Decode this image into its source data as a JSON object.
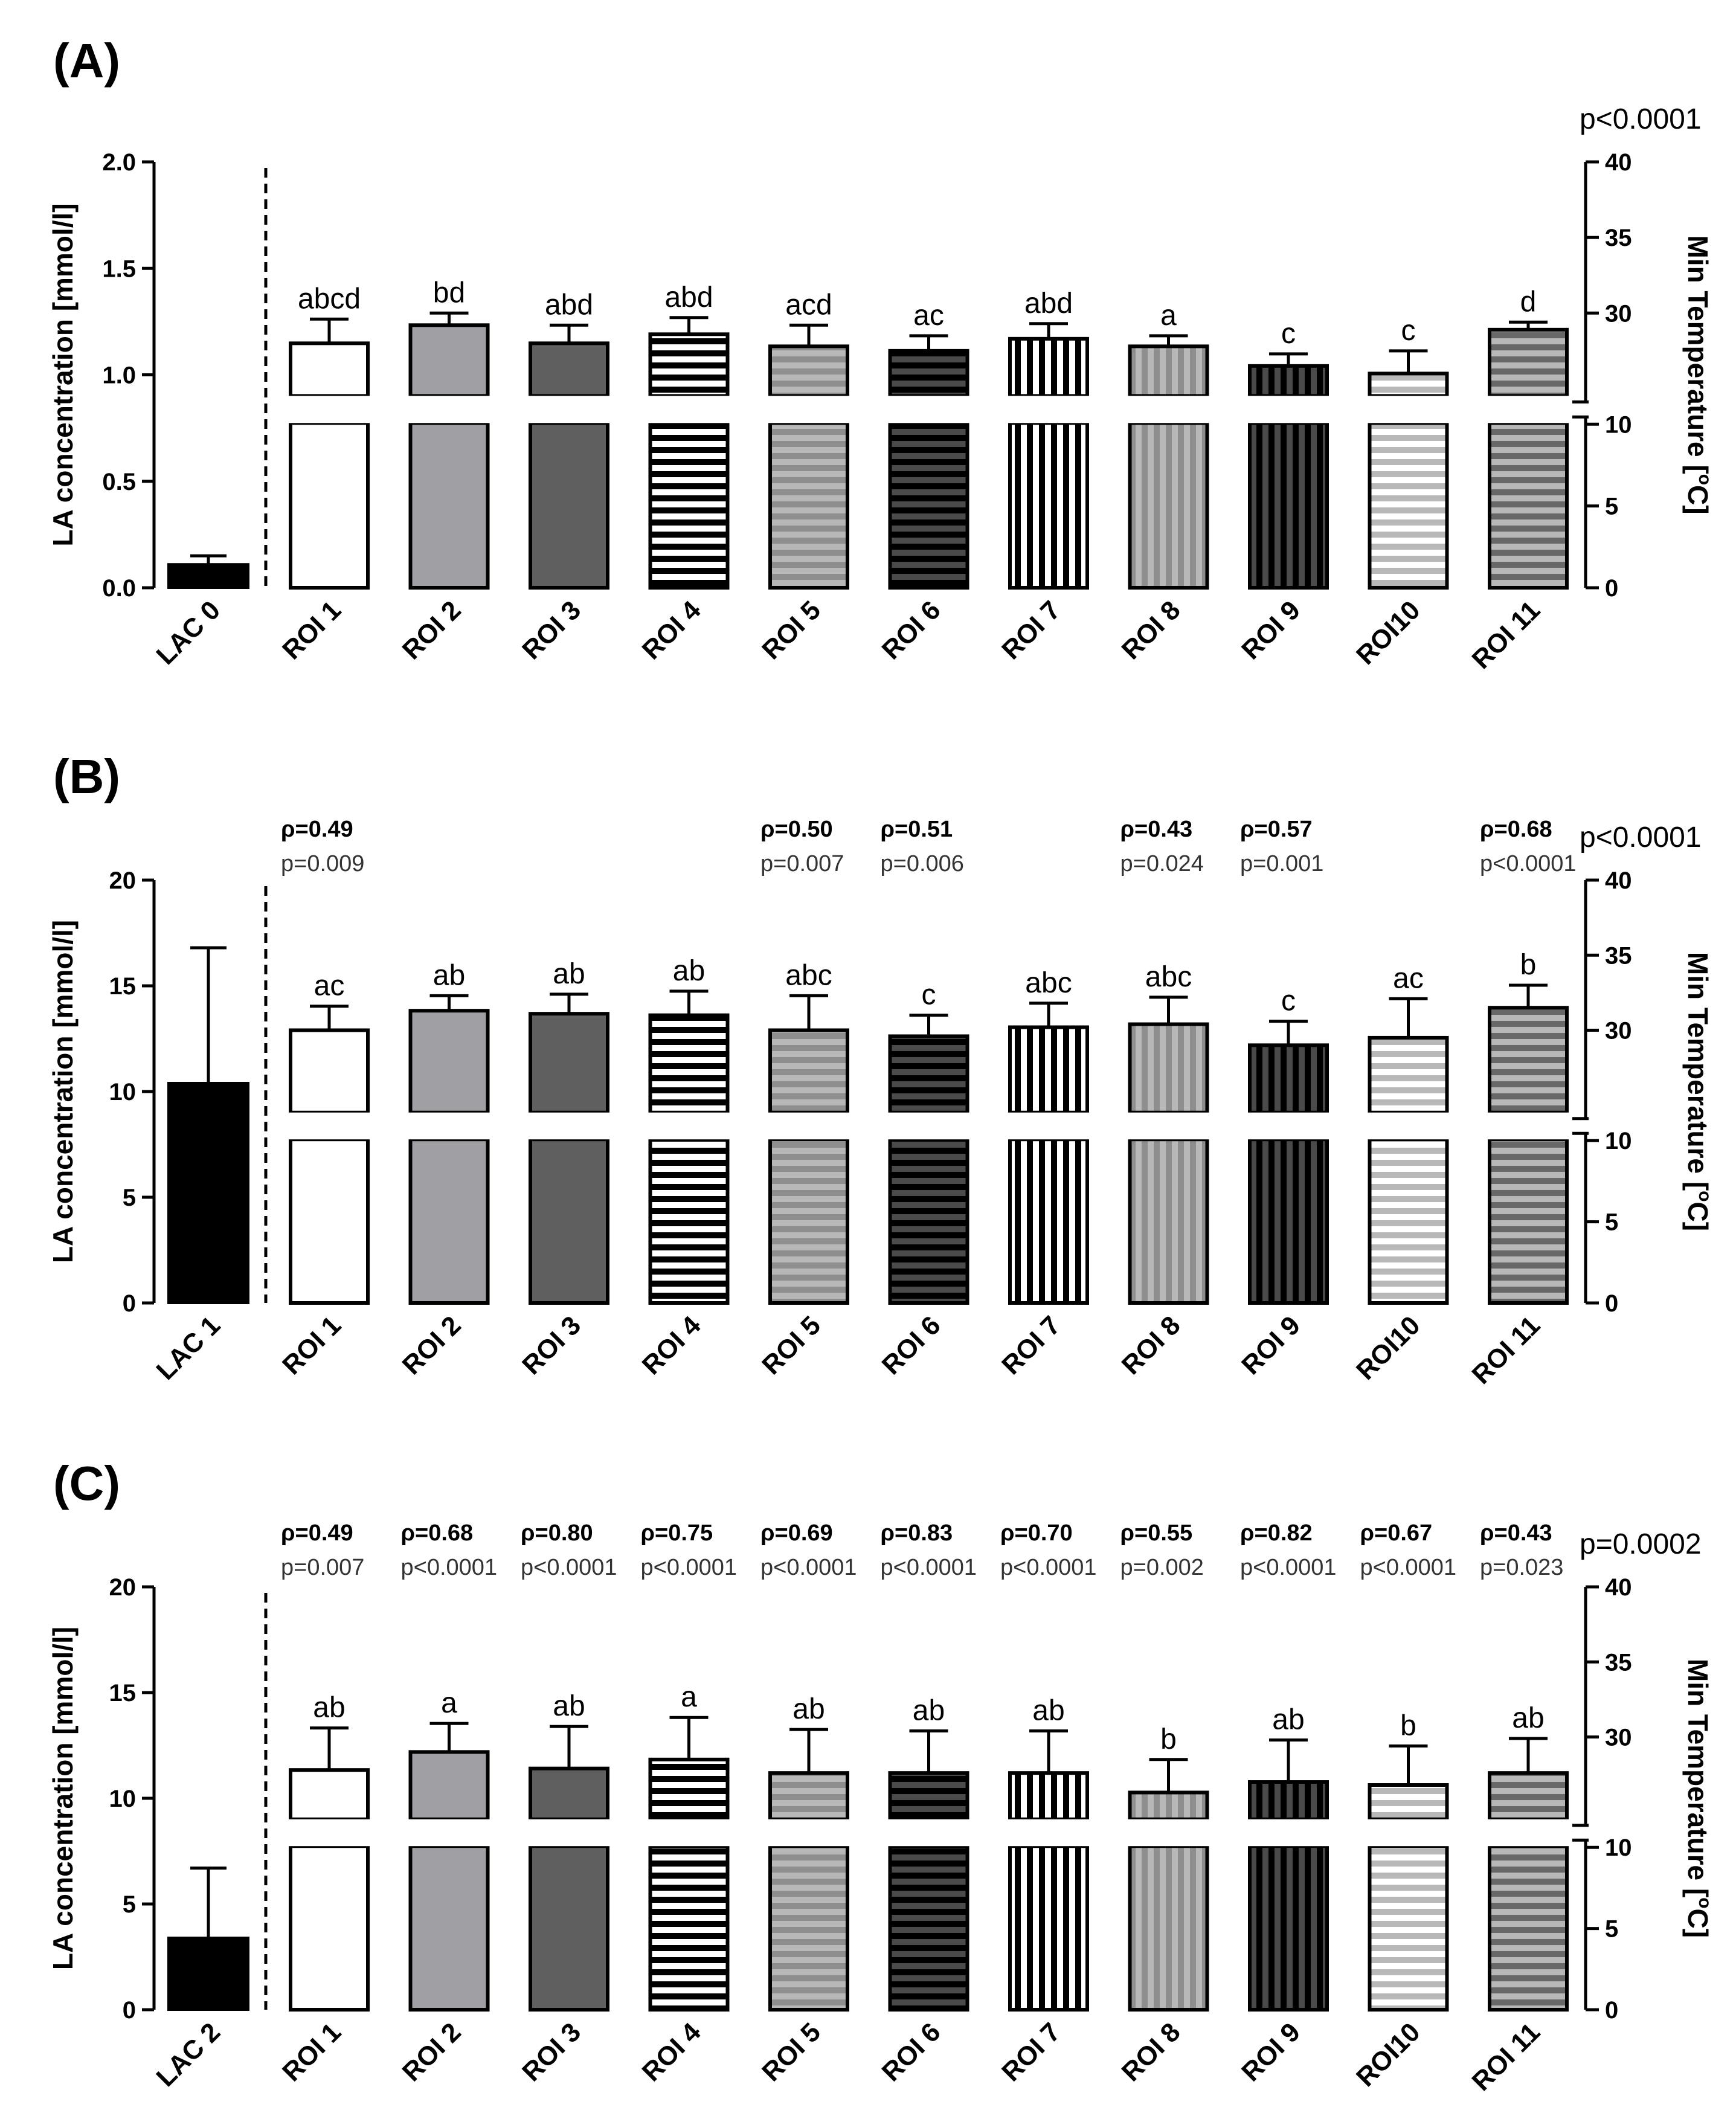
{
  "figure": {
    "left_axis_label": "LA concentration [mmol/l]",
    "right_axis_label_main": "Min Temperature [",
    "right_axis_label_sup": "o",
    "right_axis_label_end": "C]"
  },
  "colors": {
    "black": "#000000",
    "white": "#ffffff",
    "light_gray": "#a0a0a4",
    "dark_gray": "#5f5f5f",
    "mid_gray": "#8e8e8e",
    "darker_gray": "#4a4a4a",
    "stripe_light": "#b8b8b8",
    "stripe_dark": "#686868"
  },
  "legend_patterns": [
    "solid-black",
    "solid-white",
    "solid-light-gray",
    "solid-dark-gray",
    "hstripe-white-black",
    "hstripe-gray",
    "hstripe-dark",
    "vstripe-white-black",
    "vstripe-gray",
    "vstripe-dark",
    "hstripe-light",
    "hstripe-mid"
  ],
  "chart_data": [
    {
      "type": "bar",
      "panel_label": "(A)",
      "categories": [
        "LAC 0",
        "ROI 1",
        "ROI 2",
        "ROI 3",
        "ROI 4",
        "ROI 5",
        "ROI 6",
        "ROI 7",
        "ROI 8",
        "ROI 9",
        "ROI10",
        "ROI 11"
      ],
      "left_axis": {
        "label": "LA concentration [mmol/l]",
        "ylim": [
          0,
          2.0
        ],
        "ticks": [
          "0.0",
          "0.5",
          "1.0",
          "1.5",
          "2.0"
        ]
      },
      "right_axis": {
        "label": "Min Temperature [oC]",
        "lower_range": [
          0,
          10
        ],
        "upper_range": [
          25,
          40
        ],
        "lower_ticks": [
          "0",
          "5",
          "10"
        ],
        "upper_ticks": [
          "30",
          "35",
          "40"
        ]
      },
      "global_p": "p<0.0001",
      "lac_value": 0.11,
      "lac_sd": 0.04,
      "roi_temps": [
        28.0,
        29.2,
        28.0,
        28.6,
        27.8,
        27.5,
        28.3,
        27.8,
        26.5,
        26.0,
        28.9
      ],
      "roi_sd": [
        1.6,
        0.8,
        1.2,
        1.1,
        1.4,
        1.0,
        1.0,
        0.7,
        0.8,
        1.5,
        0.5
      ],
      "letters": [
        "abcd",
        "bd",
        "abd",
        "abd",
        "acd",
        "ac",
        "abd",
        "a",
        "c",
        "c",
        "d"
      ],
      "correlations": []
    },
    {
      "type": "bar",
      "panel_label": "(B)",
      "categories": [
        "LAC 1",
        "ROI 1",
        "ROI 2",
        "ROI 3",
        "ROI 4",
        "ROI 5",
        "ROI 6",
        "ROI 7",
        "ROI 8",
        "ROI 9",
        "ROI10",
        "ROI 11"
      ],
      "left_axis": {
        "label": "LA concentration [mmol/l]",
        "ylim": [
          0,
          20
        ],
        "ticks": [
          "0",
          "5",
          "10",
          "15",
          "20"
        ]
      },
      "right_axis": {
        "label": "Min Temperature [oC]",
        "lower_range": [
          0,
          10
        ],
        "upper_range": [
          25,
          40
        ],
        "lower_ticks": [
          "0",
          "5",
          "10"
        ],
        "upper_ticks": [
          "30",
          "35",
          "40"
        ]
      },
      "global_p": "p<0.0001",
      "lac_value": 10.4,
      "lac_sd": 6.4,
      "roi_temps": [
        30.0,
        31.3,
        31.1,
        31.0,
        30.0,
        29.6,
        30.2,
        30.4,
        29.0,
        29.5,
        31.5
      ],
      "roi_sd": [
        1.6,
        1.0,
        1.3,
        1.6,
        2.3,
        1.4,
        1.6,
        1.8,
        1.6,
        2.6,
        1.5
      ],
      "letters": [
        "ac",
        "ab",
        "ab",
        "ab",
        "abc",
        "c",
        "abc",
        "abc",
        "c",
        "ac",
        "b"
      ],
      "correlations": [
        {
          "roi": "ROI 1",
          "rho": "ρ=0.49",
          "p": "p=0.009"
        },
        {
          "roi": "ROI 5",
          "rho": "ρ=0.50",
          "p": "p=0.007"
        },
        {
          "roi": "ROI 6",
          "rho": "ρ=0.51",
          "p": "p=0.006"
        },
        {
          "roi": "ROI 8",
          "rho": "ρ=0.43",
          "p": "p=0.024"
        },
        {
          "roi": "ROI 9",
          "rho": "ρ=0.57",
          "p": "p=0.001"
        },
        {
          "roi": "ROI 11",
          "rho": "ρ=0.68",
          "p": "p<0.0001"
        }
      ]
    },
    {
      "type": "bar",
      "panel_label": "(C)",
      "categories": [
        "LAC 2",
        "ROI 1",
        "ROI 2",
        "ROI 3",
        "ROI 4",
        "ROI 5",
        "ROI 6",
        "ROI 7",
        "ROI 8",
        "ROI 9",
        "ROI10",
        "ROI 11"
      ],
      "left_axis": {
        "label": "LA concentration [mmol/l]",
        "ylim": [
          0,
          20
        ],
        "ticks": [
          "0",
          "5",
          "10",
          "15",
          "20"
        ]
      },
      "right_axis": {
        "label": "Min Temperature [oC]",
        "lower_range": [
          0,
          10
        ],
        "upper_range": [
          25,
          40
        ],
        "lower_ticks": [
          "0",
          "5",
          "10"
        ],
        "upper_ticks": [
          "30",
          "35",
          "40"
        ]
      },
      "global_p": "p=0.0002",
      "lac_value": 3.4,
      "lac_sd": 3.3,
      "roi_temps": [
        27.8,
        29.0,
        27.9,
        28.5,
        27.6,
        27.6,
        27.6,
        26.3,
        27.0,
        26.8,
        27.6
      ],
      "roi_sd": [
        2.8,
        1.9,
        2.8,
        2.8,
        2.9,
        2.8,
        2.8,
        2.2,
        2.8,
        2.6,
        2.3
      ],
      "letters": [
        "ab",
        "a",
        "ab",
        "a",
        "ab",
        "ab",
        "ab",
        "b",
        "ab",
        "b",
        "ab"
      ],
      "correlations": [
        {
          "roi": "ROI 1",
          "rho": "ρ=0.49",
          "p": "p=0.007"
        },
        {
          "roi": "ROI 2",
          "rho": "ρ=0.68",
          "p": "p<0.0001"
        },
        {
          "roi": "ROI 3",
          "rho": "ρ=0.80",
          "p": "p<0.0001"
        },
        {
          "roi": "ROI 4",
          "rho": "ρ=0.75",
          "p": "p<0.0001"
        },
        {
          "roi": "ROI 5",
          "rho": "ρ=0.69",
          "p": "p<0.0001"
        },
        {
          "roi": "ROI 6",
          "rho": "ρ=0.83",
          "p": "p<0.0001"
        },
        {
          "roi": "ROI 7",
          "rho": "ρ=0.70",
          "p": "p<0.0001"
        },
        {
          "roi": "ROI 8",
          "rho": "ρ=0.55",
          "p": "p=0.002"
        },
        {
          "roi": "ROI 9",
          "rho": "ρ=0.82",
          "p": "p<0.0001"
        },
        {
          "roi": "ROI 10",
          "rho": "ρ=0.67",
          "p": "p<0.0001"
        },
        {
          "roi": "ROI 11",
          "rho": "ρ=0.43",
          "p": "p=0.023"
        }
      ]
    }
  ]
}
